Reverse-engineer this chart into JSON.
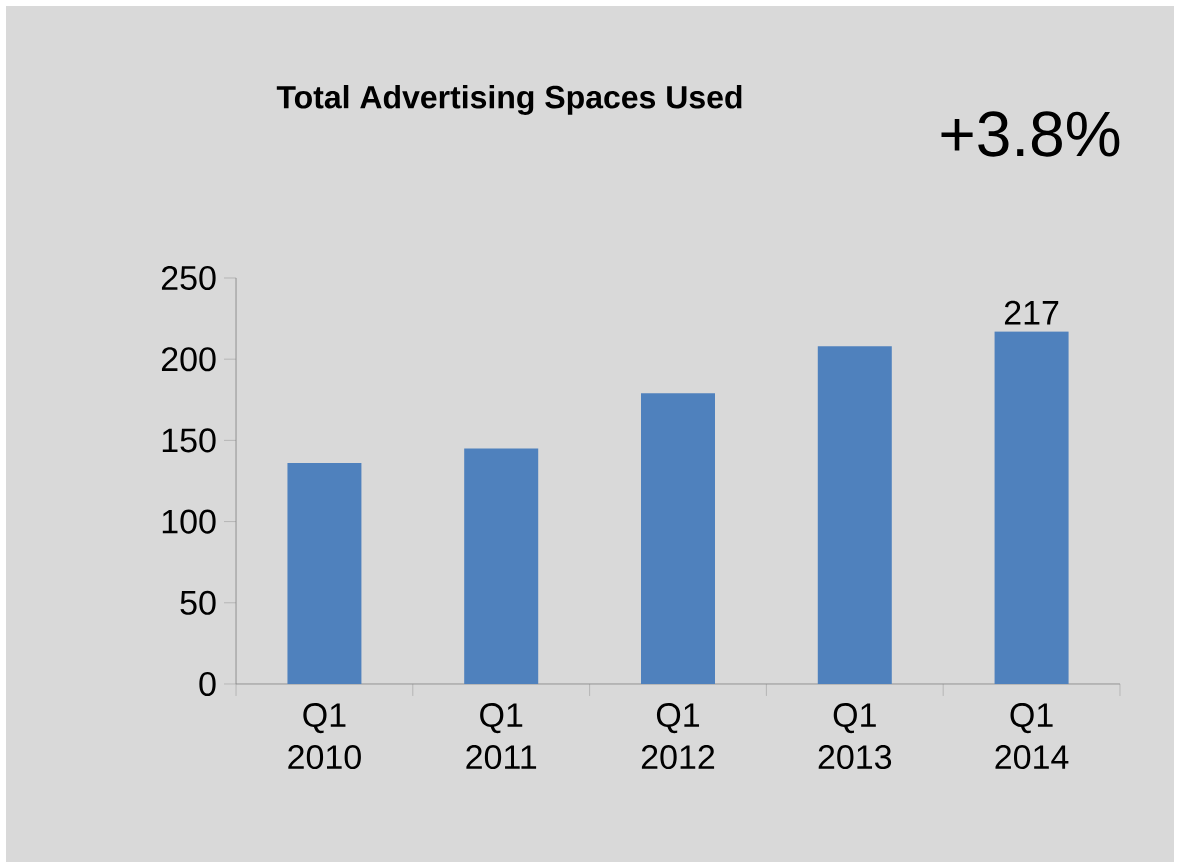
{
  "chart_data": {
    "type": "bar",
    "title": "Total Advertising Spaces Used",
    "annotations": [
      "+3.8%"
    ],
    "categories": [
      "Q1 2010",
      "Q1 2011",
      "Q1 2012",
      "Q1 2013",
      "Q1 2014"
    ],
    "values": [
      136,
      145,
      179,
      208,
      217
    ],
    "value_labels": [
      null,
      null,
      null,
      null,
      "217"
    ],
    "color": "#4f81bd",
    "ylim": [
      0,
      250
    ],
    "yticks": [
      0,
      50,
      100,
      150,
      200,
      250
    ],
    "grid": false
  }
}
